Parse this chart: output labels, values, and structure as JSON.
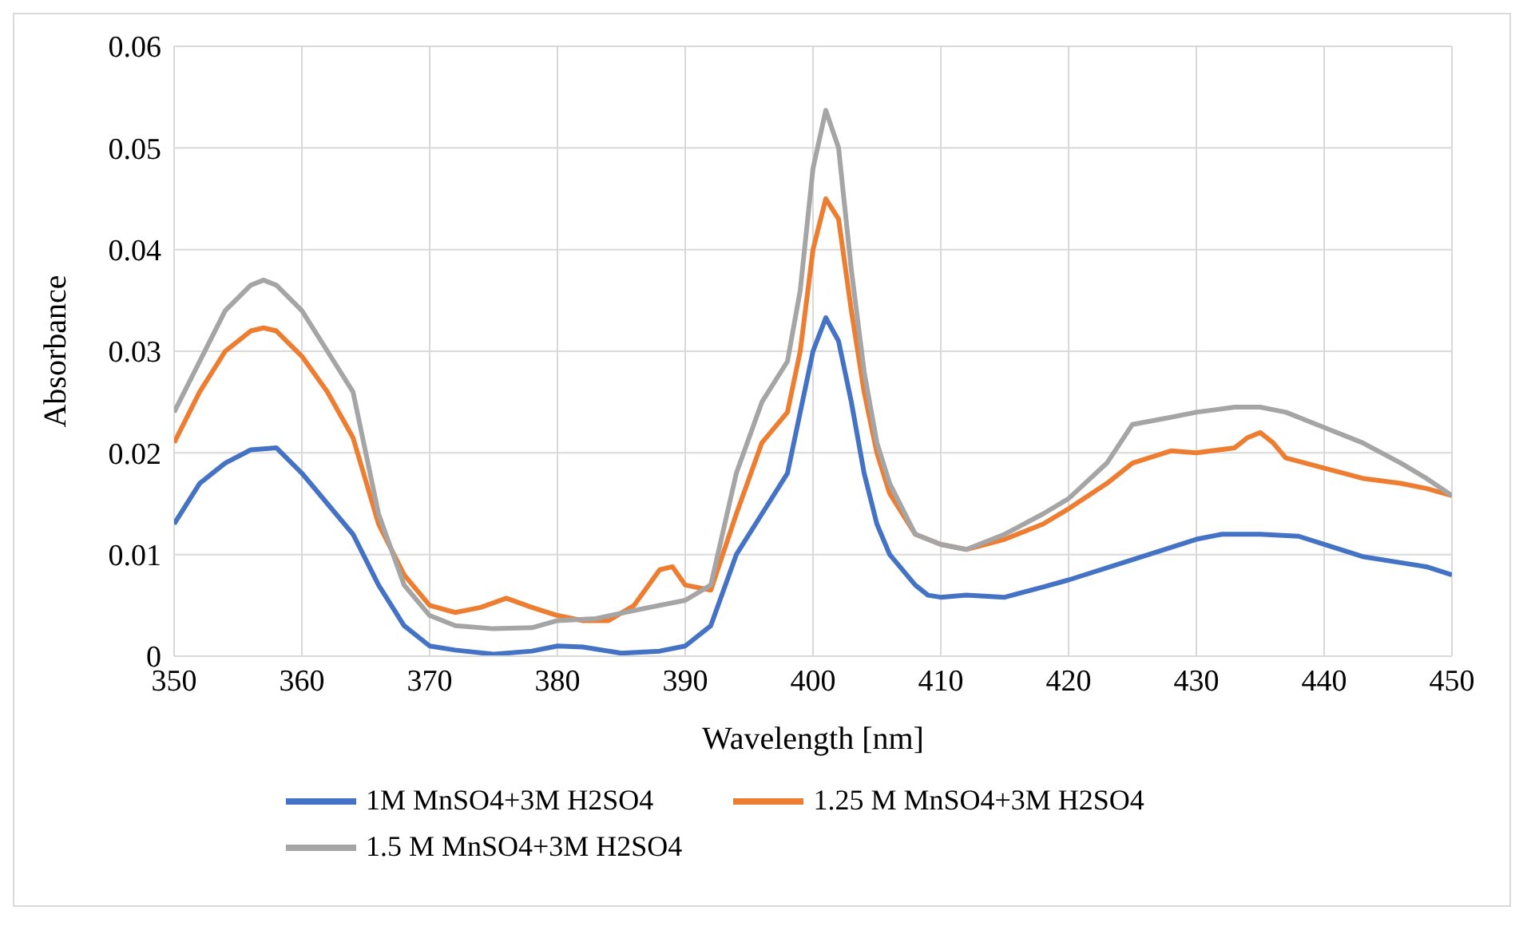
{
  "chart_data": {
    "type": "line",
    "xlabel": "Wavelength [nm]",
    "ylabel": "Absorbance",
    "xlim": [
      350,
      450
    ],
    "xticks": [
      350,
      360,
      370,
      380,
      390,
      400,
      410,
      420,
      430,
      440,
      450
    ],
    "ylim": [
      0,
      0.06
    ],
    "yticks": [
      0,
      0.01,
      0.02,
      0.03,
      0.04,
      0.05,
      0.06
    ],
    "grid": true,
    "legend": "bottom",
    "marker": "none",
    "line_style": "solid",
    "series": [
      {
        "name": "1M MnSO4+3M H2SO4",
        "color": "#4472c4",
        "x": [
          350,
          352,
          354,
          356,
          358,
          360,
          362,
          364,
          366,
          368,
          370,
          372,
          375,
          378,
          380,
          382,
          385,
          388,
          390,
          392,
          394,
          396,
          398,
          399,
          400,
          401,
          402,
          403,
          404,
          405,
          406,
          408,
          409,
          410,
          412,
          415,
          418,
          420,
          425,
          430,
          432,
          435,
          438,
          440,
          443,
          446,
          448,
          450
        ],
        "values": [
          0.013,
          0.017,
          0.019,
          0.0203,
          0.0205,
          0.018,
          0.015,
          0.012,
          0.007,
          0.003,
          0.001,
          0.0006,
          0.0002,
          0.0005,
          0.001,
          0.0009,
          0.0003,
          0.0005,
          0.001,
          0.003,
          0.01,
          0.014,
          0.018,
          0.024,
          0.03,
          0.0333,
          0.031,
          0.025,
          0.018,
          0.013,
          0.01,
          0.007,
          0.006,
          0.0058,
          0.006,
          0.0058,
          0.0068,
          0.0075,
          0.0095,
          0.0115,
          0.012,
          0.012,
          0.0118,
          0.011,
          0.0098,
          0.0092,
          0.0088,
          0.008
        ]
      },
      {
        "name": "1.25 M MnSO4+3M H2SO4",
        "color": "#ed7d31",
        "x": [
          350,
          352,
          354,
          356,
          357,
          358,
          360,
          362,
          364,
          366,
          368,
          370,
          372,
          374,
          376,
          378,
          380,
          382,
          384,
          386,
          388,
          389,
          390,
          392,
          394,
          396,
          398,
          399,
          400,
          401,
          402,
          403,
          404,
          405,
          406,
          408,
          410,
          412,
          415,
          418,
          420,
          423,
          425,
          428,
          430,
          433,
          434,
          435,
          436,
          437,
          440,
          443,
          446,
          448,
          450
        ],
        "values": [
          0.021,
          0.026,
          0.03,
          0.032,
          0.0323,
          0.032,
          0.0295,
          0.026,
          0.0215,
          0.013,
          0.008,
          0.005,
          0.0043,
          0.0048,
          0.0057,
          0.0048,
          0.004,
          0.0035,
          0.0035,
          0.005,
          0.0085,
          0.0088,
          0.007,
          0.0065,
          0.014,
          0.021,
          0.024,
          0.03,
          0.04,
          0.045,
          0.043,
          0.034,
          0.026,
          0.02,
          0.016,
          0.012,
          0.011,
          0.0105,
          0.0115,
          0.013,
          0.0145,
          0.017,
          0.019,
          0.0202,
          0.02,
          0.0205,
          0.0215,
          0.022,
          0.021,
          0.0195,
          0.0185,
          0.0175,
          0.017,
          0.0165,
          0.0158
        ]
      },
      {
        "name": "1.5 M MnSO4+3M H2SO4",
        "color": "#a5a5a5",
        "x": [
          350,
          352,
          354,
          356,
          357,
          358,
          360,
          362,
          364,
          366,
          368,
          370,
          372,
          375,
          378,
          380,
          383,
          386,
          390,
          392,
          394,
          396,
          398,
          399,
          400,
          401,
          402,
          403,
          404,
          405,
          406,
          408,
          410,
          412,
          415,
          418,
          420,
          423,
          425,
          428,
          430,
          433,
          435,
          437,
          440,
          443,
          446,
          448,
          450
        ],
        "values": [
          0.024,
          0.029,
          0.034,
          0.0365,
          0.037,
          0.0365,
          0.034,
          0.03,
          0.026,
          0.014,
          0.007,
          0.004,
          0.003,
          0.0027,
          0.0028,
          0.0035,
          0.0037,
          0.0045,
          0.0055,
          0.007,
          0.018,
          0.025,
          0.029,
          0.036,
          0.048,
          0.0537,
          0.05,
          0.038,
          0.028,
          0.021,
          0.017,
          0.012,
          0.011,
          0.0105,
          0.012,
          0.014,
          0.0155,
          0.019,
          0.0228,
          0.0235,
          0.024,
          0.0245,
          0.0245,
          0.024,
          0.0225,
          0.021,
          0.019,
          0.0175,
          0.0158
        ]
      }
    ]
  }
}
